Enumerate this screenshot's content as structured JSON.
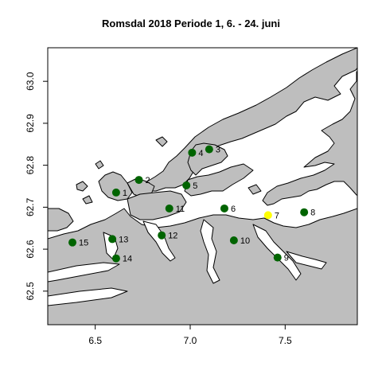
{
  "title": "Romsdal 2018 Periode 1, 6. - 24. juni",
  "colors": {
    "land": "#bebebe",
    "coastline": "#000000",
    "sea": "#ffffff",
    "station": "#006400",
    "station_highlight": "#ffff00"
  },
  "axes": {
    "xlim": [
      6.25,
      7.88
    ],
    "ylim": [
      62.42,
      63.08
    ],
    "x_ticks": [
      6.5,
      7.0,
      7.5
    ],
    "y_ticks": [
      62.5,
      62.6,
      62.7,
      62.8,
      62.9,
      63.0
    ],
    "x_tick_labels": [
      "6.5",
      "7.0",
      "7.5"
    ],
    "y_tick_labels": [
      "62.5",
      "62.6",
      "62.7",
      "62.8",
      "62.9",
      "63.0"
    ]
  },
  "stations": [
    {
      "label": "1",
      "lon": 6.61,
      "lat": 62.735,
      "highlight": false
    },
    {
      "label": "2",
      "lon": 6.73,
      "lat": 62.765,
      "highlight": false
    },
    {
      "label": "3",
      "lon": 7.1,
      "lat": 62.838,
      "highlight": false
    },
    {
      "label": "4",
      "lon": 7.01,
      "lat": 62.83,
      "highlight": false
    },
    {
      "label": "5",
      "lon": 6.98,
      "lat": 62.752,
      "highlight": false
    },
    {
      "label": "6",
      "lon": 7.18,
      "lat": 62.697,
      "highlight": false
    },
    {
      "label": "7",
      "lon": 7.41,
      "lat": 62.681,
      "highlight": true
    },
    {
      "label": "8",
      "lon": 7.6,
      "lat": 62.688,
      "highlight": false
    },
    {
      "label": "9",
      "lon": 7.46,
      "lat": 62.58,
      "highlight": false
    },
    {
      "label": "10",
      "lon": 7.23,
      "lat": 62.621,
      "highlight": false
    },
    {
      "label": "11",
      "lon": 6.89,
      "lat": 62.697,
      "highlight": false
    },
    {
      "label": "12",
      "lon": 6.85,
      "lat": 62.633,
      "highlight": false
    },
    {
      "label": "13",
      "lon": 6.59,
      "lat": 62.624,
      "highlight": false
    },
    {
      "label": "14",
      "lon": 6.61,
      "lat": 62.578,
      "highlight": false
    },
    {
      "label": "15",
      "lon": 6.38,
      "lat": 62.616,
      "highlight": false
    }
  ]
}
